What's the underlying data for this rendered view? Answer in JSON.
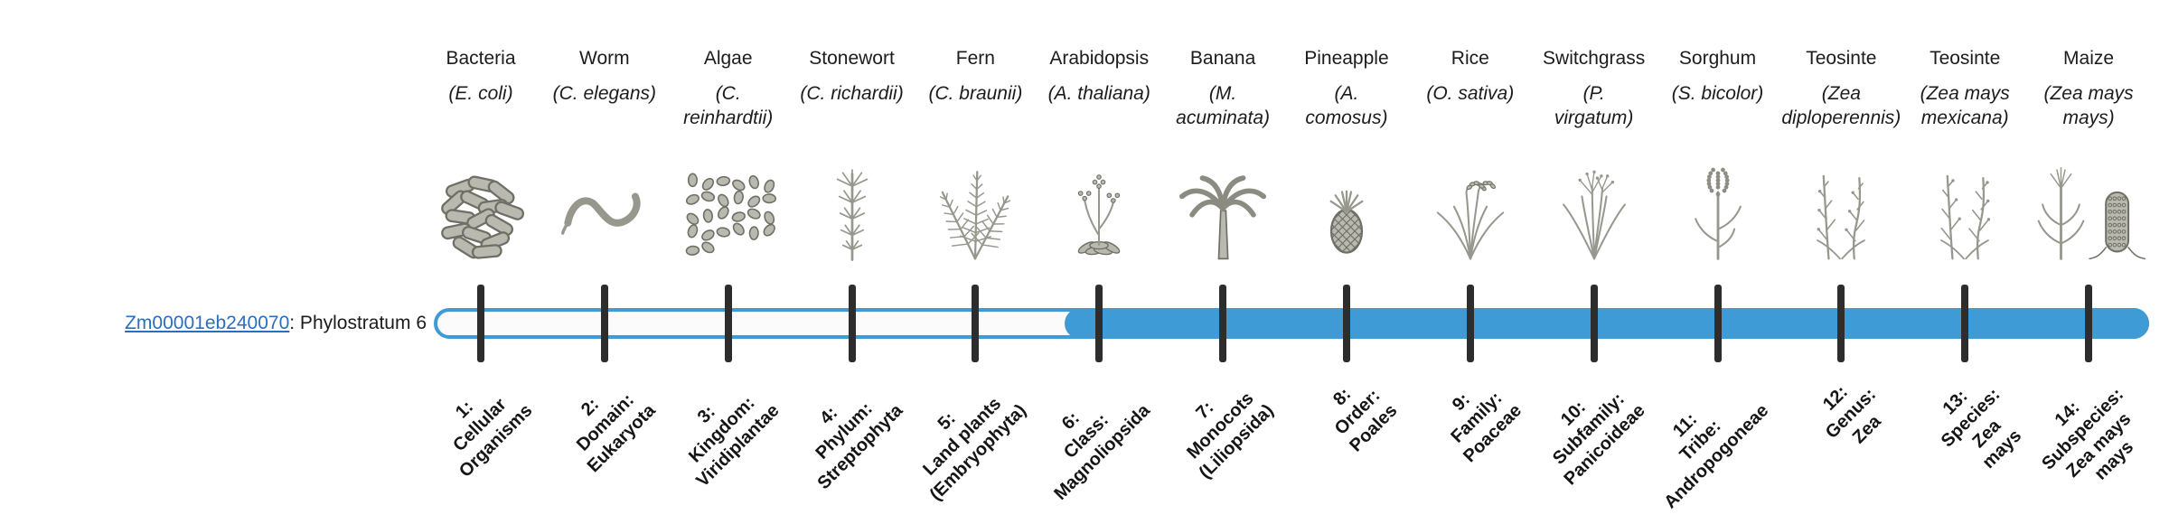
{
  "gene": {
    "id": "Zm00001eb240070",
    "suffix": ": Phylostratum 6",
    "phylostratum": 6
  },
  "timeline": {
    "strata_count": 14,
    "filled_from_stratum": 6
  },
  "colors": {
    "bar_blue": "#3e9bd6",
    "track_fill": "#fbfbfb",
    "tick_dark": "#2d2d2d",
    "link_blue": "#2a6ebf",
    "text_black": "#1c1c1c"
  },
  "species": [
    {
      "common": "Bacteria",
      "scientific": "(E. coli)",
      "icon": "bacteria-icon",
      "stratum": "1:\nCellular\nOrganisms"
    },
    {
      "common": "Worm",
      "scientific": "(C. elegans)",
      "icon": "worm-icon",
      "stratum": "2:\nDomain:\nEukaryota"
    },
    {
      "common": "Algae",
      "scientific": "(C.\nreinhardtii)",
      "icon": "algae-icon",
      "stratum": "3:\nKingdom:\nViridiplantae"
    },
    {
      "common": "Stonewort",
      "scientific": "(C. richardii)",
      "icon": "stonewort-icon",
      "stratum": "4:\nPhylum:\nStreptophyta"
    },
    {
      "common": "Fern",
      "scientific": "(C. braunii)",
      "icon": "fern-icon",
      "stratum": "5:\nLand plants\n(Embryophyta)"
    },
    {
      "common": "Arabidopsis",
      "scientific": "(A. thaliana)",
      "icon": "arabidopsis-icon",
      "stratum": "6:\nClass:\nMagnoliopsida"
    },
    {
      "common": "Banana",
      "scientific": "(M.\nacuminata)",
      "icon": "banana-icon",
      "stratum": "7:\nMonocots\n(Liliopsida)"
    },
    {
      "common": "Pineapple",
      "scientific": "(A.\ncomosus)",
      "icon": "pineapple-icon",
      "stratum": "8:\nOrder:\nPoales"
    },
    {
      "common": "Rice",
      "scientific": "(O. sativa)",
      "icon": "rice-icon",
      "stratum": "9:\nFamily:\nPoaceae"
    },
    {
      "common": "Switchgrass",
      "scientific": "(P.\nvirgatum)",
      "icon": "switchgrass-icon",
      "stratum": "10:\nSubfamily:\nPanicoideae"
    },
    {
      "common": "Sorghum",
      "scientific": "(S. bicolor)",
      "icon": "sorghum-icon",
      "stratum": "11:\nTribe:\nAndropogoneae"
    },
    {
      "common": "Teosinte",
      "scientific": "(Zea\ndiploperennis)",
      "icon": "teosinte-diploperennis-icon",
      "stratum": "12:\nGenus:\nZea"
    },
    {
      "common": "Teosinte",
      "scientific": "(Zea mays\nmexicana)",
      "icon": "teosinte-mexicana-icon",
      "stratum": "13:\nSpecies:\nZea\nmays"
    },
    {
      "common": "Maize",
      "scientific": "(Zea mays\nmays)",
      "icon": "maize-icon",
      "stratum": "14:\nSubspecies:\nZea mays\nmays"
    }
  ]
}
